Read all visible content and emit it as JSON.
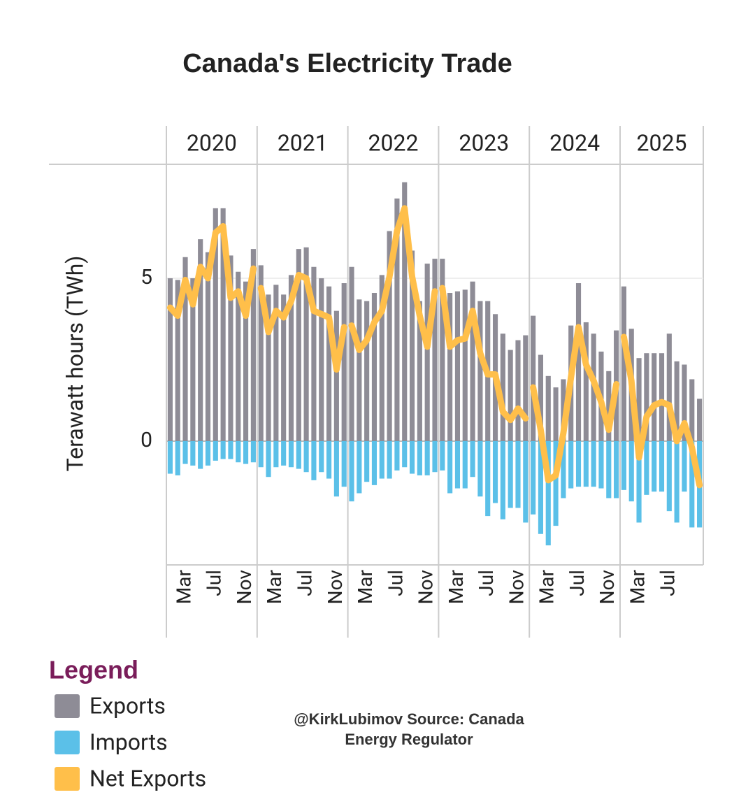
{
  "chart_data": {
    "type": "bar",
    "title": "Canada's Electricity Trade",
    "y_label": "Terawatt hours (TWh)",
    "legend_title": "Legend",
    "source": "@KirkLubimov  Source: Canada Energy Regulator",
    "years": [
      {
        "name": "2020",
        "months": [
          null,
          null,
          "Mar",
          null,
          null,
          null,
          "Jul",
          null,
          null,
          null,
          "Nov",
          null
        ]
      },
      {
        "name": "2021",
        "months": [
          null,
          null,
          "Mar",
          null,
          null,
          null,
          "Jul",
          null,
          null,
          null,
          "Nov",
          null
        ]
      },
      {
        "name": "2022",
        "months": [
          null,
          null,
          "Mar",
          null,
          null,
          null,
          "Jul",
          null,
          null,
          null,
          "Nov",
          null
        ]
      },
      {
        "name": "2023",
        "months": [
          null,
          null,
          "Mar",
          null,
          null,
          null,
          "Jul",
          null,
          null,
          null,
          "Nov",
          null
        ]
      },
      {
        "name": "2024",
        "months": [
          null,
          null,
          "Mar",
          null,
          null,
          null,
          "Jul",
          null,
          null,
          null,
          "Nov",
          null
        ]
      },
      {
        "name": "2025",
        "months": [
          null,
          null,
          "Mar",
          null,
          null,
          null,
          "Jul",
          null,
          null,
          null,
          null
        ]
      }
    ],
    "ylim": [
      -3.8,
      8.5
    ],
    "yticks": [
      0,
      5
    ],
    "grid": true,
    "series": [
      {
        "name": "Exports",
        "type": "bar",
        "color": "#8e8c96",
        "values": [
          5.0,
          4.95,
          5.65,
          5.0,
          6.2,
          5.8,
          7.15,
          7.15,
          5.7,
          5.2,
          4.9,
          5.9,
          5.4,
          4.5,
          4.8,
          4.5,
          5.1,
          5.9,
          5.95,
          5.35,
          5.0,
          4.75,
          4.0,
          4.85,
          5.35,
          4.35,
          4.3,
          4.55,
          5.1,
          6.45,
          7.45,
          7.95,
          5.85,
          4.3,
          5.45,
          5.6,
          5.6,
          4.55,
          4.6,
          4.65,
          4.9,
          4.3,
          4.3,
          3.9,
          3.3,
          2.8,
          3.1,
          3.25,
          3.85,
          2.65,
          2.0,
          1.65,
          1.9,
          3.55,
          4.85,
          3.65,
          3.3,
          2.75,
          2.15,
          3.4,
          4.75,
          3.45,
          2.55,
          2.7,
          2.7,
          2.7,
          3.3,
          2.45,
          2.35,
          1.9,
          1.3
        ]
      },
      {
        "name": "Imports",
        "type": "bar",
        "color": "#5bc0e8",
        "values": [
          -1.0,
          -1.05,
          -0.7,
          -0.75,
          -0.85,
          -0.75,
          -0.6,
          -0.55,
          -0.55,
          -0.65,
          -0.7,
          -0.65,
          -0.8,
          -1.1,
          -0.8,
          -0.75,
          -0.8,
          -0.85,
          -0.95,
          -1.2,
          -0.95,
          -1.15,
          -1.7,
          -1.4,
          -1.85,
          -1.6,
          -1.25,
          -1.35,
          -1.15,
          -1.15,
          -0.9,
          -0.8,
          -1.0,
          -1.05,
          -1.05,
          -0.95,
          -0.9,
          -1.6,
          -1.45,
          -1.45,
          -1.1,
          -1.7,
          -2.3,
          -1.9,
          -2.4,
          -2.05,
          -2.05,
          -2.5,
          -2.25,
          -2.85,
          -3.2,
          -2.6,
          -1.75,
          -1.45,
          -1.4,
          -1.4,
          -1.4,
          -1.45,
          -1.75,
          -1.75,
          -1.5,
          -1.85,
          -2.5,
          -1.65,
          -1.55,
          -1.55,
          -2.15,
          -2.5,
          -1.55,
          -2.65,
          -2.65
        ]
      },
      {
        "name": "Net Exports",
        "type": "line",
        "color": "#ffbf4a",
        "values": [
          4.1,
          3.85,
          4.95,
          4.2,
          5.35,
          5.0,
          6.4,
          6.6,
          4.4,
          4.6,
          3.85,
          5.3,
          4.7,
          3.35,
          4.0,
          3.8,
          4.3,
          5.1,
          5.0,
          4.0,
          3.9,
          3.8,
          2.2,
          3.5,
          3.55,
          2.8,
          3.1,
          3.65,
          4.0,
          5.05,
          6.45,
          7.15,
          5.05,
          3.85,
          2.9,
          4.6,
          4.7,
          2.9,
          3.1,
          3.15,
          4.0,
          2.7,
          2.05,
          2.05,
          0.9,
          0.65,
          1.0,
          0.7,
          1.65,
          0.35,
          -1.2,
          -1.05,
          0.25,
          1.95,
          3.5,
          2.35,
          1.85,
          1.2,
          0.35,
          1.75,
          3.2,
          1.85,
          -0.5,
          0.75,
          1.1,
          1.2,
          1.1,
          0.0,
          0.55,
          -0.2,
          -1.35
        ]
      }
    ]
  }
}
